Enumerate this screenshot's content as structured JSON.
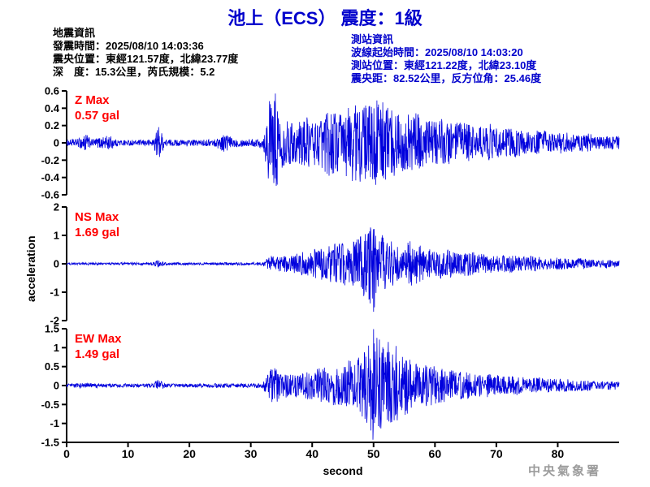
{
  "header": {
    "title": "池上（ECS） 震度：1級"
  },
  "earthquake_info": {
    "heading": "地震資訊",
    "lines": [
      "發震時間：2025/08/10 14:03:36",
      "震央位置：東經121.57度，北緯23.77度",
      "深　度：15.3公里，芮氏規模：5.2"
    ]
  },
  "station_info": {
    "heading": "測站資訊",
    "lines": [
      "波線起始時間：2025/08/10 14:03:20",
      "測站位置：東經121.22度，北緯23.10度",
      "震央距：82.52公里，反方位角：25.46度"
    ]
  },
  "footer": {
    "agency": "中央氣象署"
  },
  "colors": {
    "accent_blue": "#0000cc",
    "trace_blue": "#0000dd",
    "label_red": "#ff0000",
    "watermark_gray": "#9c9c9c"
  },
  "chart_data": {
    "type": "line",
    "title": "池上（ECS） 震度：1級",
    "xlabel": "second",
    "ylabel": "acceleration",
    "x_range": [
      0,
      90
    ],
    "x_ticks": [
      0,
      10,
      20,
      30,
      40,
      50,
      60,
      70,
      80
    ],
    "trace_color": "#0000dd",
    "grid": false,
    "panels": [
      {
        "channel": "Z",
        "max_label": "Z Max",
        "max_value": "0.57 gal",
        "max_gal": 0.57,
        "peak_time": 34,
        "peak_sign": 1,
        "ylim": [
          -0.6,
          0.6
        ],
        "yticks": [
          0.6,
          0.4,
          0.2,
          0,
          -0.2,
          -0.4,
          -0.6
        ],
        "envelope": [
          [
            0,
            0.03
          ],
          [
            2,
            0.05
          ],
          [
            3,
            0.12
          ],
          [
            4,
            0.04
          ],
          [
            7,
            0.09
          ],
          [
            8,
            0.04
          ],
          [
            11,
            0.03
          ],
          [
            14,
            0.04
          ],
          [
            15,
            0.2
          ],
          [
            16,
            0.04
          ],
          [
            20,
            0.035
          ],
          [
            24,
            0.04
          ],
          [
            26,
            0.12
          ],
          [
            27,
            0.05
          ],
          [
            30,
            0.04
          ],
          [
            32,
            0.06
          ],
          [
            33,
            0.5
          ],
          [
            34,
            0.57
          ],
          [
            35,
            0.3
          ],
          [
            37,
            0.22
          ],
          [
            39,
            0.3
          ],
          [
            41,
            0.26
          ],
          [
            43,
            0.4
          ],
          [
            45,
            0.35
          ],
          [
            47,
            0.5
          ],
          [
            49,
            0.42
          ],
          [
            51,
            0.52
          ],
          [
            53,
            0.4
          ],
          [
            55,
            0.32
          ],
          [
            57,
            0.36
          ],
          [
            59,
            0.25
          ],
          [
            61,
            0.3
          ],
          [
            63,
            0.22
          ],
          [
            65,
            0.26
          ],
          [
            67,
            0.18
          ],
          [
            69,
            0.22
          ],
          [
            71,
            0.15
          ],
          [
            73,
            0.19
          ],
          [
            75,
            0.13
          ],
          [
            77,
            0.16
          ],
          [
            79,
            0.11
          ],
          [
            81,
            0.13
          ],
          [
            83,
            0.09
          ],
          [
            85,
            0.11
          ],
          [
            87,
            0.07
          ],
          [
            89,
            0.08
          ]
        ]
      },
      {
        "channel": "NS",
        "max_label": "NS Max",
        "max_value": "1.69 gal",
        "max_gal": 1.69,
        "peak_time": 50,
        "peak_sign": -1,
        "ylim": [
          -2,
          2
        ],
        "yticks": [
          2,
          1,
          0,
          -1,
          -2
        ],
        "envelope": [
          [
            0,
            0.03
          ],
          [
            3,
            0.05
          ],
          [
            7,
            0.04
          ],
          [
            14,
            0.05
          ],
          [
            15,
            0.14
          ],
          [
            16,
            0.05
          ],
          [
            20,
            0.04
          ],
          [
            25,
            0.05
          ],
          [
            30,
            0.05
          ],
          [
            32,
            0.07
          ],
          [
            33,
            0.3
          ],
          [
            34,
            0.25
          ],
          [
            36,
            0.3
          ],
          [
            38,
            0.4
          ],
          [
            40,
            0.5
          ],
          [
            42,
            0.6
          ],
          [
            44,
            0.75
          ],
          [
            46,
            0.8
          ],
          [
            48,
            1.0
          ],
          [
            50,
            1.69
          ],
          [
            51,
            1.1
          ],
          [
            52,
            0.9
          ],
          [
            54,
            0.75
          ],
          [
            56,
            0.85
          ],
          [
            58,
            0.6
          ],
          [
            60,
            0.5
          ],
          [
            62,
            0.55
          ],
          [
            64,
            0.4
          ],
          [
            66,
            0.45
          ],
          [
            68,
            0.35
          ],
          [
            70,
            0.3
          ],
          [
            72,
            0.33
          ],
          [
            74,
            0.25
          ],
          [
            76,
            0.28
          ],
          [
            78,
            0.2
          ],
          [
            80,
            0.22
          ],
          [
            82,
            0.17
          ],
          [
            84,
            0.19
          ],
          [
            86,
            0.14
          ],
          [
            88,
            0.15
          ],
          [
            89,
            0.13
          ]
        ]
      },
      {
        "channel": "EW",
        "max_label": "EW Max",
        "max_value": "1.49 gal",
        "max_gal": 1.49,
        "peak_time": 50,
        "peak_sign": 1,
        "ylim": [
          -1.5,
          1.5
        ],
        "yticks": [
          1.5,
          1,
          0.5,
          0,
          -0.5,
          -1,
          -1.5
        ],
        "envelope": [
          [
            0,
            0.04
          ],
          [
            3,
            0.07
          ],
          [
            7,
            0.05
          ],
          [
            14,
            0.05
          ],
          [
            15,
            0.17
          ],
          [
            16,
            0.05
          ],
          [
            20,
            0.05
          ],
          [
            25,
            0.06
          ],
          [
            30,
            0.05
          ],
          [
            32,
            0.08
          ],
          [
            33,
            0.4
          ],
          [
            34,
            0.5
          ],
          [
            35,
            0.35
          ],
          [
            37,
            0.3
          ],
          [
            39,
            0.38
          ],
          [
            41,
            0.45
          ],
          [
            43,
            0.5
          ],
          [
            45,
            0.6
          ],
          [
            47,
            0.75
          ],
          [
            49,
            1.0
          ],
          [
            50,
            1.49
          ],
          [
            52,
            1.1
          ],
          [
            53,
            1.25
          ],
          [
            55,
            0.8
          ],
          [
            57,
            0.6
          ],
          [
            59,
            0.55
          ],
          [
            61,
            0.45
          ],
          [
            63,
            0.4
          ],
          [
            65,
            0.36
          ],
          [
            67,
            0.3
          ],
          [
            69,
            0.32
          ],
          [
            71,
            0.25
          ],
          [
            73,
            0.27
          ],
          [
            75,
            0.2
          ],
          [
            77,
            0.22
          ],
          [
            79,
            0.17
          ],
          [
            81,
            0.18
          ],
          [
            83,
            0.14
          ],
          [
            85,
            0.15
          ],
          [
            87,
            0.11
          ],
          [
            89,
            0.12
          ]
        ]
      }
    ]
  }
}
